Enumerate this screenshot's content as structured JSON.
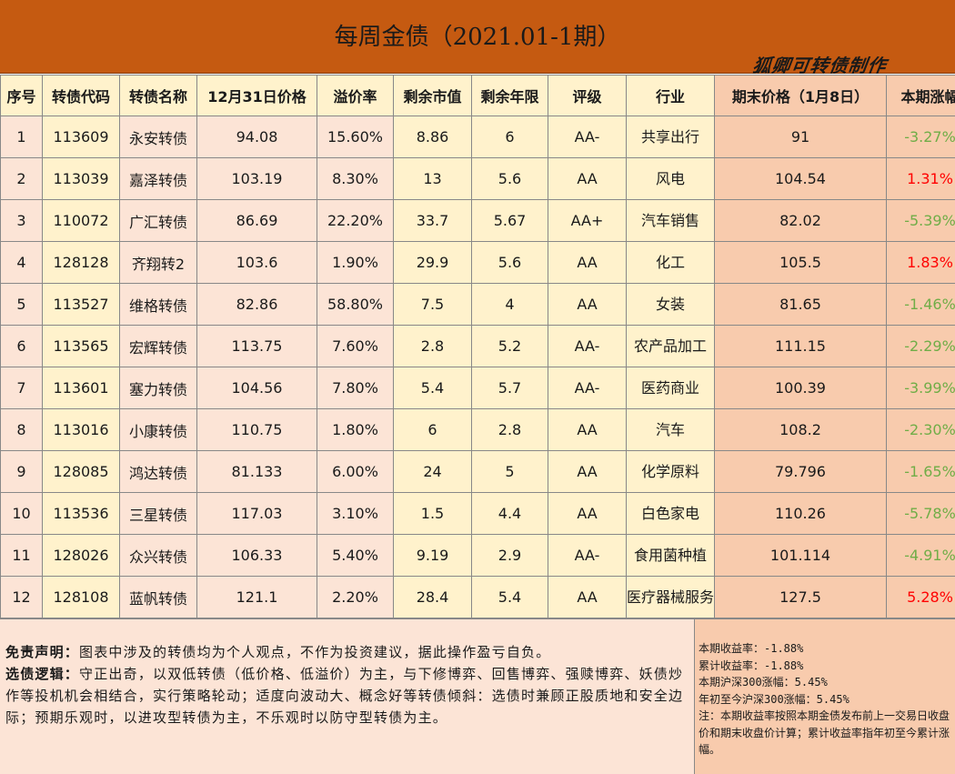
{
  "title": "每周金债（2021.01-1期）",
  "signature": "狐卿可转债制作",
  "headers": {
    "idx": "序号",
    "code": "转债代码",
    "name": "转债名称",
    "prev_price": "12月31日价格",
    "premium": "溢价率",
    "remaining_value": "剩余市值",
    "remaining_years": "剩余年限",
    "rating": "评级",
    "industry": "行业",
    "end_price": "期末价格（1月8日）",
    "change": "本期涨幅"
  },
  "rows": [
    {
      "idx": "1",
      "code": "113609",
      "name": "永安转债",
      "prev_price": "94.08",
      "premium": "15.60%",
      "remaining_value": "8.86",
      "remaining_years": "6",
      "rating": "AA-",
      "industry": "共享出行",
      "end_price": "91",
      "change": "-3.27%"
    },
    {
      "idx": "2",
      "code": "113039",
      "name": "嘉泽转债",
      "prev_price": "103.19",
      "premium": "8.30%",
      "remaining_value": "13",
      "remaining_years": "5.6",
      "rating": "AA",
      "industry": "风电",
      "end_price": "104.54",
      "change": "1.31%"
    },
    {
      "idx": "3",
      "code": "110072",
      "name": "广汇转债",
      "prev_price": "86.69",
      "premium": "22.20%",
      "remaining_value": "33.7",
      "remaining_years": "5.67",
      "rating": "AA+",
      "industry": "汽车销售",
      "end_price": "82.02",
      "change": "-5.39%"
    },
    {
      "idx": "4",
      "code": "128128",
      "name": "齐翔转2",
      "prev_price": "103.6",
      "premium": "1.90%",
      "remaining_value": "29.9",
      "remaining_years": "5.6",
      "rating": "AA",
      "industry": "化工",
      "end_price": "105.5",
      "change": "1.83%"
    },
    {
      "idx": "5",
      "code": "113527",
      "name": "维格转债",
      "prev_price": "82.86",
      "premium": "58.80%",
      "remaining_value": "7.5",
      "remaining_years": "4",
      "rating": "AA",
      "industry": "女装",
      "end_price": "81.65",
      "change": "-1.46%"
    },
    {
      "idx": "6",
      "code": "113565",
      "name": "宏辉转债",
      "prev_price": "113.75",
      "premium": "7.60%",
      "remaining_value": "2.8",
      "remaining_years": "5.2",
      "rating": "AA-",
      "industry": "农产品加工",
      "end_price": "111.15",
      "change": "-2.29%"
    },
    {
      "idx": "7",
      "code": "113601",
      "name": "塞力转债",
      "prev_price": "104.56",
      "premium": "7.80%",
      "remaining_value": "5.4",
      "remaining_years": "5.7",
      "rating": "AA-",
      "industry": "医药商业",
      "end_price": "100.39",
      "change": "-3.99%"
    },
    {
      "idx": "8",
      "code": "113016",
      "name": "小康转债",
      "prev_price": "110.75",
      "premium": "1.80%",
      "remaining_value": "6",
      "remaining_years": "2.8",
      "rating": "AA",
      "industry": "汽车",
      "end_price": "108.2",
      "change": "-2.30%"
    },
    {
      "idx": "9",
      "code": "128085",
      "name": "鸿达转债",
      "prev_price": "81.133",
      "premium": "6.00%",
      "remaining_value": "24",
      "remaining_years": "5",
      "rating": "AA",
      "industry": "化学原料",
      "end_price": "79.796",
      "change": "-1.65%"
    },
    {
      "idx": "10",
      "code": "113536",
      "name": "三星转债",
      "prev_price": "117.03",
      "premium": "3.10%",
      "remaining_value": "1.5",
      "remaining_years": "4.4",
      "rating": "AA",
      "industry": "白色家电",
      "end_price": "110.26",
      "change": "-5.78%"
    },
    {
      "idx": "11",
      "code": "128026",
      "name": "众兴转债",
      "prev_price": "106.33",
      "premium": "5.40%",
      "remaining_value": "9.19",
      "remaining_years": "2.9",
      "rating": "AA-",
      "industry": "食用菌种植",
      "end_price": "101.114",
      "change": "-4.91%"
    },
    {
      "idx": "12",
      "code": "128108",
      "name": "蓝帆转债",
      "prev_price": "121.1",
      "premium": "2.20%",
      "remaining_value": "28.4",
      "remaining_years": "5.4",
      "rating": "AA",
      "industry": "医疗器械服务",
      "end_price": "127.5",
      "change": "5.28%"
    }
  ],
  "disclaimer": {
    "label": "免责声明：",
    "text": "图表中涉及的转债均为个人观点，不作为投资建议，据此操作盈亏自负。",
    "logic_label": "选债逻辑：",
    "logic_text": "守正出奇，以双低转债（低价格、低溢价）为主，与下修博弈、回售博弈、强赎博弈、妖债炒作等投机机会相结合，实行策略轮动；适度向波动大、概念好等转债倾斜：选债时兼顾正股质地和安全边际；预期乐观时，以进攻型转债为主，不乐观时以防守型转债为主。"
  },
  "summary": {
    "period_return": "本期收益率：-1.88%",
    "cumulative_return": "累计收益率：-1.88%",
    "hs300_period": "本期沪深300涨幅：5.45%",
    "hs300_ytd": "年初至今沪深300涨幅：5.45%",
    "note": "注：本期收益率按照本期金债发布前上一交易日收盘价和期末收盘价计算；累计收益率指年初至今累计涨幅。"
  },
  "colors": {
    "title_bg": "#c55a11",
    "header_bg": "#fff2cc",
    "row_pink": "#fce4d6",
    "row_yellow": "#fff2cc",
    "highlight_col": "#f8cbad",
    "positive": "#ff0000",
    "negative": "#70ad47"
  }
}
